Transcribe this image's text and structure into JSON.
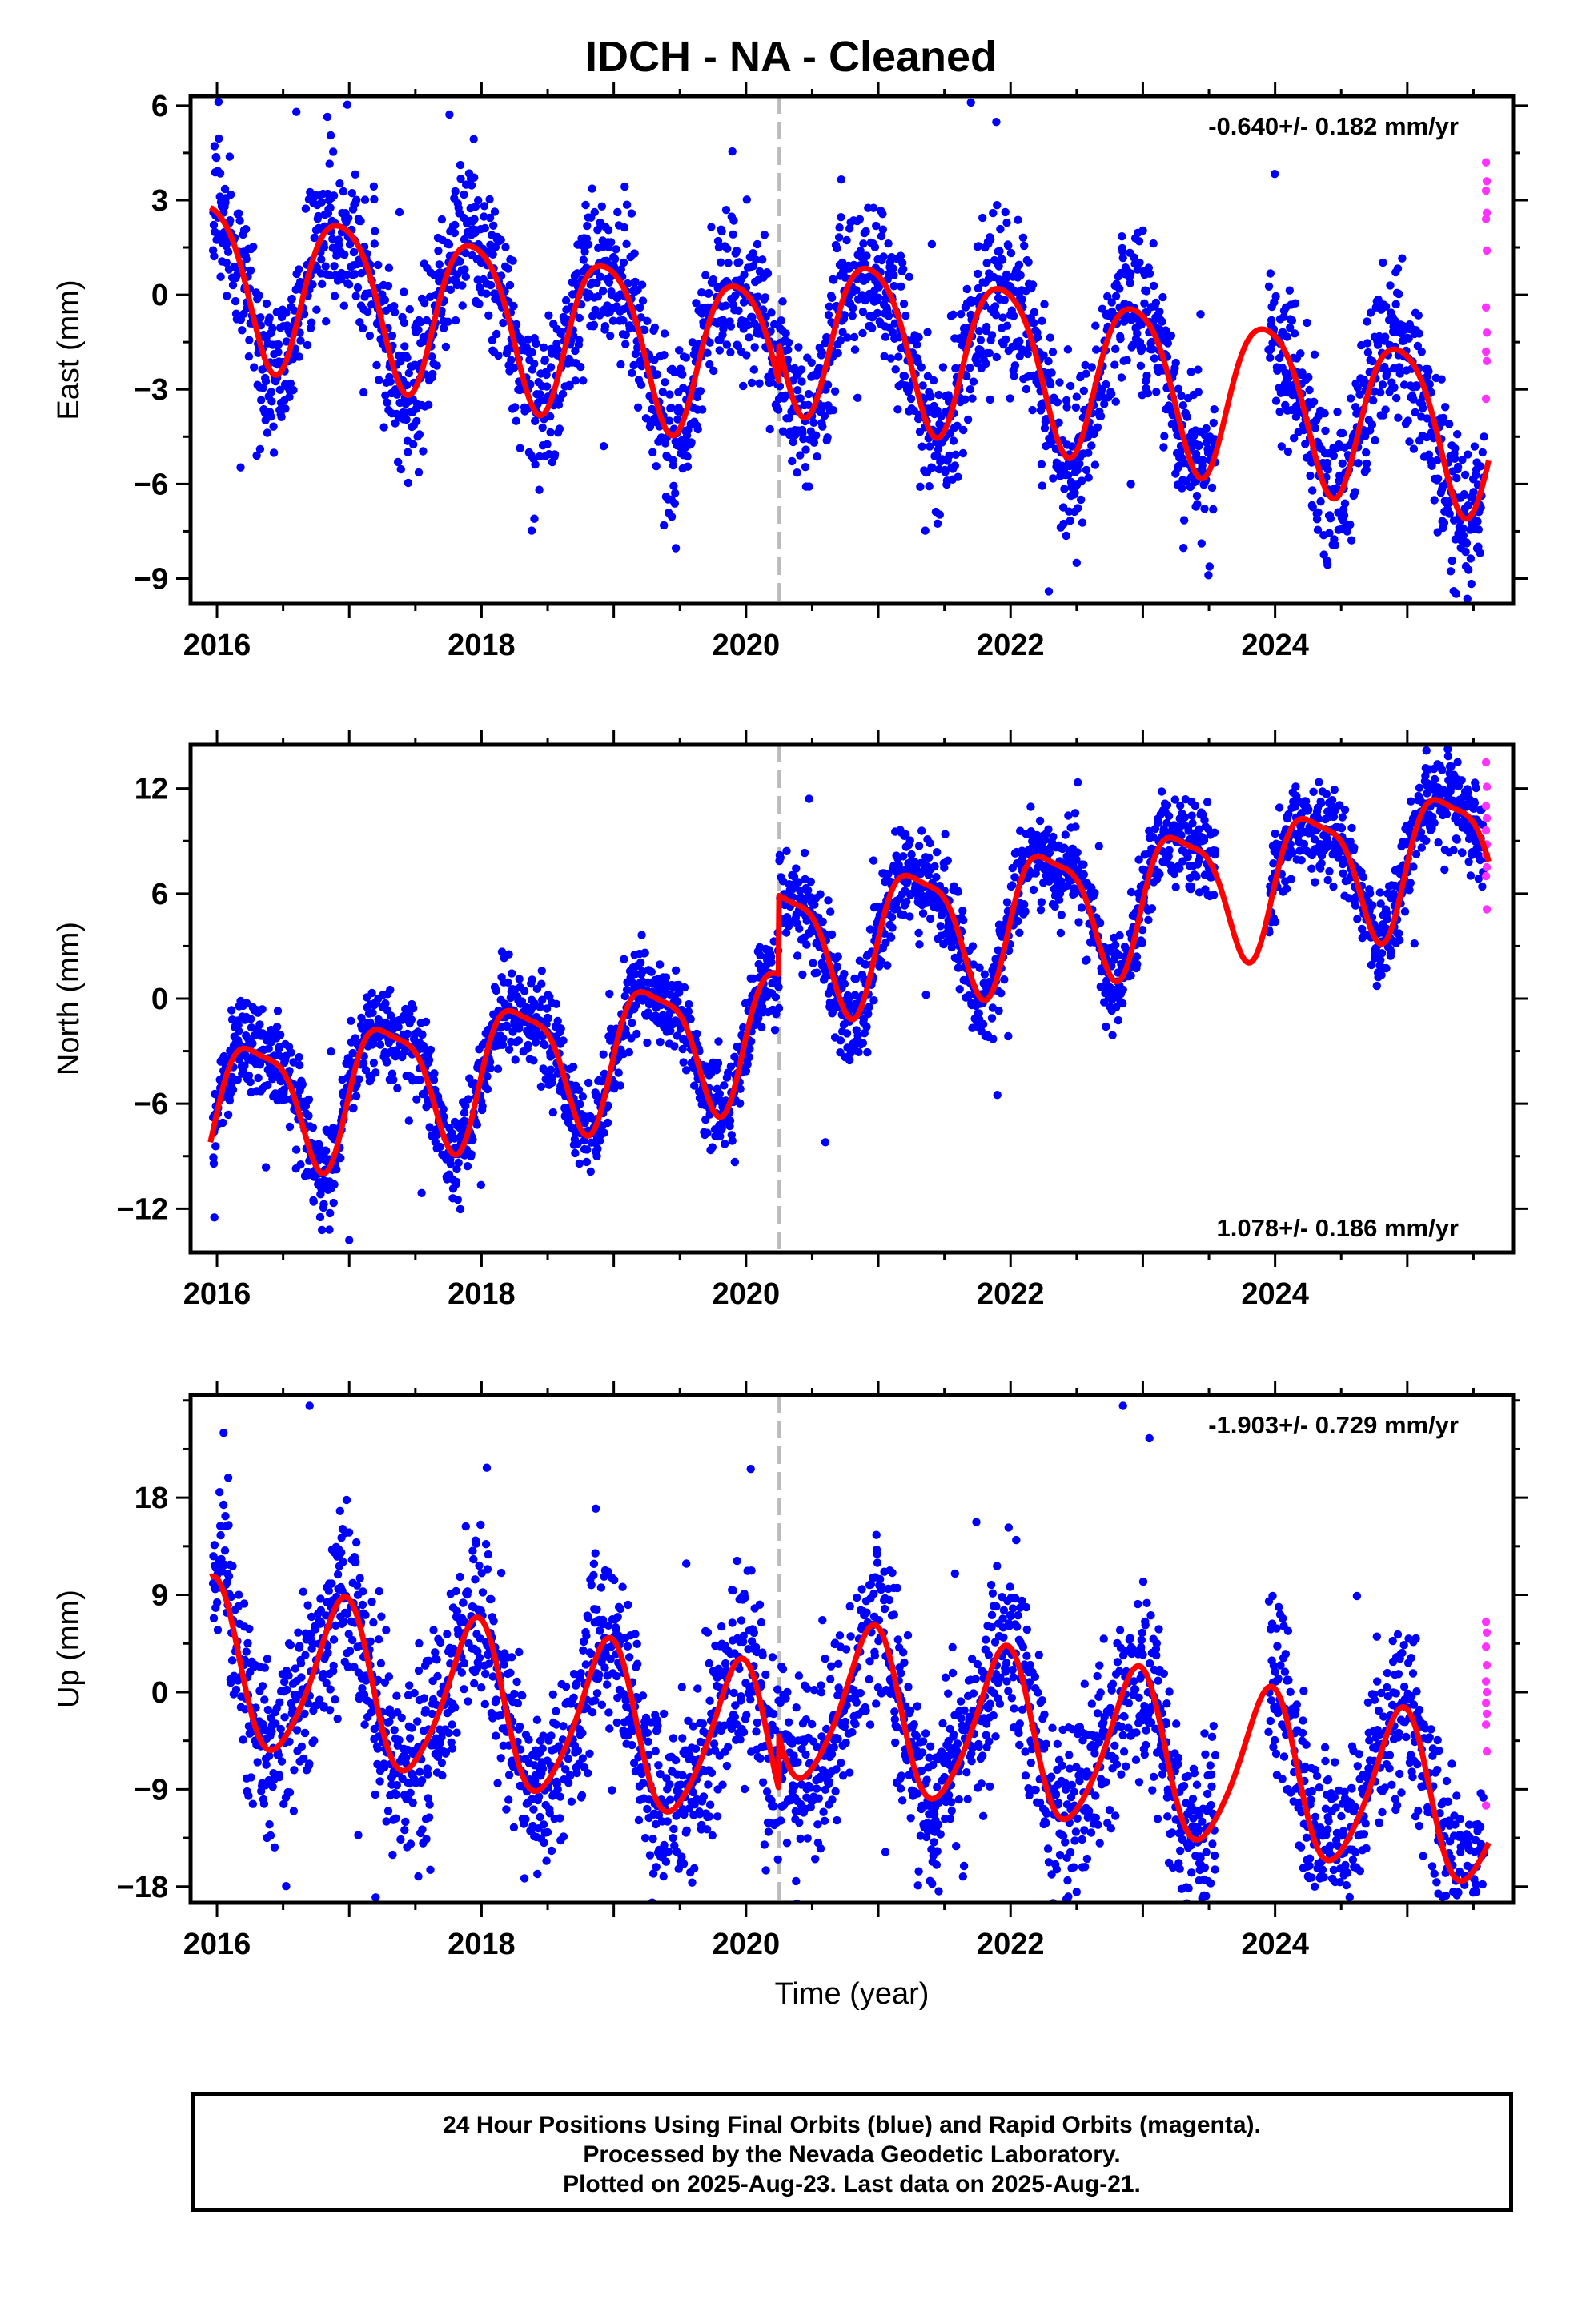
{
  "title": "IDCH  - NA - Cleaned",
  "chart_data": [
    {
      "type": "scatter",
      "component": "East",
      "ylabel": "East (mm)",
      "xlabel": "",
      "xlim": [
        2015.8,
        2025.8
      ],
      "ylim": [
        -9.8,
        6.3
      ],
      "xticks": [
        2016,
        2018,
        2020,
        2022,
        2024
      ],
      "yticks": [
        -9,
        -6,
        -3,
        0,
        3,
        6
      ],
      "rate": "-0.640+/- 0.182 mm/yr",
      "rate_position": "top-right",
      "offset_epoch": 2020.25,
      "model": {
        "intercept": 0.6,
        "rate": -0.64,
        "annual_cos": 2.3,
        "annual_sin": -1.0,
        "semiannual_cos": -0.3,
        "semiannual_sin": 0.2,
        "step": 1.2,
        "step_epoch": 2020.25
      },
      "scatter_sigma": 1.2,
      "final_end": 2025.58,
      "rapid_values": [
        4.2,
        3.6,
        3.3,
        2.6,
        2.4,
        1.4,
        -0.4,
        -1.2,
        -1.8,
        -2.1,
        -3.3
      ],
      "outliers": [
        [
          2016.3,
          -5.1
        ],
        [
          2018.4,
          -7.1
        ],
        [
          2022.5,
          -8.5
        ],
        [
          2025.35,
          -9.4
        ],
        [
          2016.6,
          5.8
        ],
        [
          2021.7,
          6.1
        ]
      ]
    },
    {
      "type": "scatter",
      "component": "North",
      "ylabel": "North (mm)",
      "xlabel": "",
      "xlim": [
        2015.8,
        2025.8
      ],
      "ylim": [
        -14.5,
        14.5
      ],
      "xticks": [
        2016,
        2018,
        2020,
        2022,
        2024
      ],
      "yticks": [
        -12,
        -6,
        0,
        6,
        12
      ],
      "rate": "1.078+/- 0.186 mm/yr",
      "rate_position": "bottom-right",
      "offset_epoch": 2020.25,
      "model": {
        "intercept": -6.2,
        "rate": 1.078,
        "annual_cos": -0.9,
        "annual_sin": 3.6,
        "semiannual_cos": 0.6,
        "semiannual_sin": 0.8,
        "step": 4.5,
        "step_epoch": 2020.25
      },
      "scatter_sigma": 1.3,
      "final_end": 2025.58,
      "rapid_values": [
        13.5,
        12.1,
        11.0,
        10.3,
        9.6,
        8.8,
        8.2,
        7.5,
        7.0,
        5.1
      ],
      "outliers": [
        [
          2017.0,
          -13.8
        ],
        [
          2016.85,
          -13.2
        ],
        [
          2020.6,
          -8.2
        ],
        [
          2021.9,
          -5.5
        ],
        [
          2015.98,
          -12.5
        ]
      ]
    },
    {
      "type": "scatter",
      "component": "Up",
      "ylabel": "Up (mm)",
      "xlabel": "Time (year)",
      "xlim": [
        2015.8,
        2025.8
      ],
      "ylim": [
        -19.5,
        27.5
      ],
      "xticks": [
        2016,
        2018,
        2020,
        2022,
        2024
      ],
      "yticks": [
        -18,
        -9,
        0,
        9,
        18
      ],
      "rate": "-1.903+/- 0.729 mm/yr",
      "rate_position": "top-right",
      "offset_epoch": 2020.25,
      "model": {
        "intercept": 2.5,
        "rate": -1.9,
        "annual_cos": 7.0,
        "annual_sin": -2.5,
        "semiannual_cos": 1.0,
        "semiannual_sin": 0.3,
        "step": 5.0,
        "step_epoch": 2020.25
      },
      "scatter_sigma": 4.2,
      "final_end": 2025.58,
      "rapid_values": [
        6.5,
        5.5,
        4.2,
        2.5,
        1.0,
        0.0,
        -1.0,
        -2.0,
        -3.0,
        -5.5,
        -10.5
      ],
      "outliers": [
        [
          2016.05,
          24.0
        ],
        [
          2016.7,
          26.5
        ],
        [
          2022.85,
          26.5
        ],
        [
          2023.05,
          23.5
        ],
        [
          2017.2,
          -19.0
        ],
        [
          2024.3,
          -18.0
        ],
        [
          2020.15,
          -16.5
        ]
      ]
    }
  ],
  "colors": {
    "final_orbits": "#0000ff",
    "rapid_orbits": "#ff33ff",
    "model_fit": "#ff0000",
    "offset_line": "#bbbbbb",
    "axes": "#000000"
  },
  "footer": {
    "line1": "24 Hour Positions Using Final Orbits (blue) and Rapid Orbits (magenta).",
    "line2": "Processed by the Nevada Geodetic Laboratory.",
    "line3": "Plotted on 2025-Aug-23. Last data on 2025-Aug-21."
  }
}
